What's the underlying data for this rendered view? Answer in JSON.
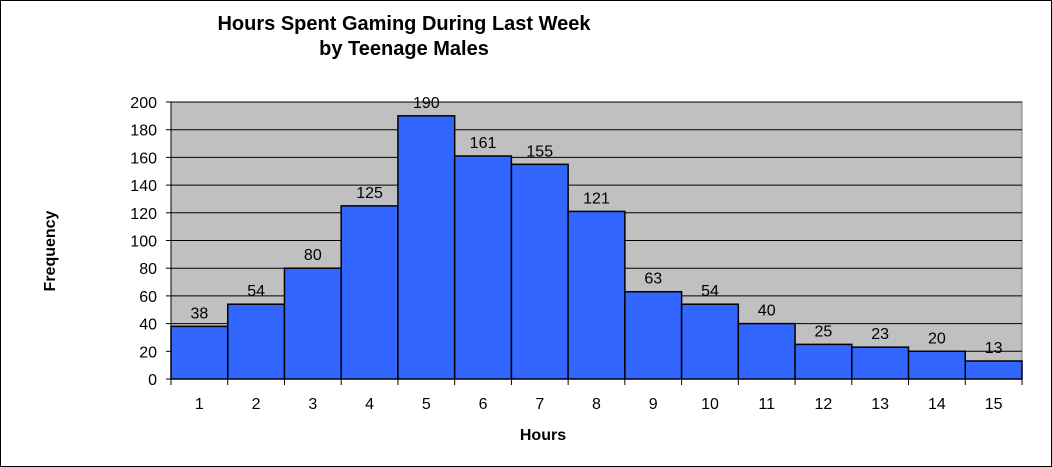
{
  "chart_data": {
    "type": "bar",
    "title_line1": "Hours Spent Gaming During Last Week",
    "title_line2": "by  Teenage Males",
    "xlabel": "Hours",
    "ylabel": "Frequency",
    "categories": [
      "1",
      "2",
      "3",
      "4",
      "5",
      "6",
      "7",
      "8",
      "9",
      "10",
      "11",
      "12",
      "13",
      "14",
      "15"
    ],
    "values": [
      38,
      54,
      80,
      125,
      190,
      161,
      155,
      121,
      63,
      54,
      40,
      25,
      23,
      20,
      13
    ],
    "ylim": [
      0,
      200
    ],
    "yticks": [
      0,
      20,
      40,
      60,
      80,
      100,
      120,
      140,
      160,
      180,
      200
    ],
    "grid": true,
    "legend": "none",
    "colors": {
      "bar": "#3366FF",
      "plot_background": "#C0C0C0",
      "grid": "#000000"
    }
  }
}
